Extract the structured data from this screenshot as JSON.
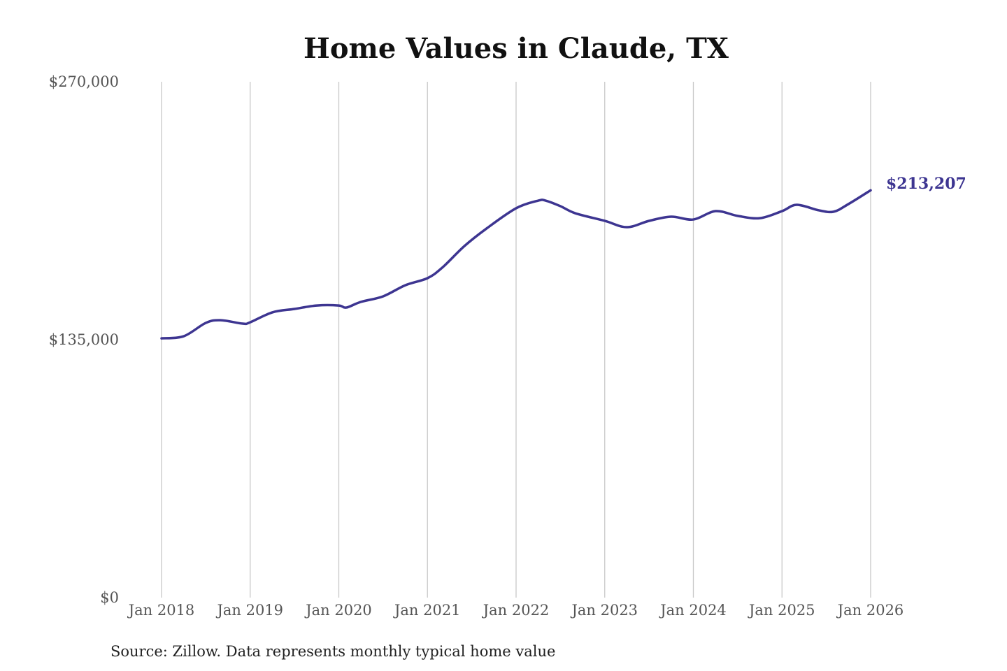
{
  "chart_data": {
    "type": "line",
    "title": "Home Values in Claude, TX",
    "xlabel": "",
    "ylabel": "",
    "ylim": [
      0,
      270000
    ],
    "y_ticks": [
      0,
      135000,
      270000
    ],
    "y_tick_labels": [
      "$0",
      "$135,000",
      "$270,000"
    ],
    "x_ticks": [
      "2018-01",
      "2019-01",
      "2020-01",
      "2021-01",
      "2022-01",
      "2023-01",
      "2024-01",
      "2025-01",
      "2026-01"
    ],
    "x_tick_labels": [
      "Jan 2018",
      "Jan 2019",
      "Jan 2020",
      "Jan 2021",
      "Jan 2022",
      "Jan 2023",
      "Jan 2024",
      "Jan 2025",
      "Jan 2026"
    ],
    "grid": "vertical",
    "line_color": "#3d3591",
    "end_label": "$213,207",
    "points": [
      [
        "2018-01",
        135700
      ],
      [
        "2018-04",
        136800
      ],
      [
        "2018-07",
        143800
      ],
      [
        "2018-09",
        145200
      ],
      [
        "2018-12",
        143400
      ],
      [
        "2019-01",
        144100
      ],
      [
        "2019-04",
        149300
      ],
      [
        "2019-07",
        151100
      ],
      [
        "2019-10",
        152900
      ],
      [
        "2020-01",
        152900
      ],
      [
        "2020-02",
        151800
      ],
      [
        "2020-04",
        154800
      ],
      [
        "2020-07",
        157700
      ],
      [
        "2020-10",
        163500
      ],
      [
        "2021-01",
        167200
      ],
      [
        "2021-03",
        172700
      ],
      [
        "2021-06",
        184000
      ],
      [
        "2021-09",
        193200
      ],
      [
        "2022-01",
        203800
      ],
      [
        "2022-04",
        207800
      ],
      [
        "2022-05",
        207800
      ],
      [
        "2022-07",
        204900
      ],
      [
        "2022-09",
        201200
      ],
      [
        "2023-01",
        197200
      ],
      [
        "2023-04",
        193900
      ],
      [
        "2023-07",
        197200
      ],
      [
        "2023-10",
        199400
      ],
      [
        "2024-01",
        197900
      ],
      [
        "2024-04",
        202300
      ],
      [
        "2024-07",
        199800
      ],
      [
        "2024-10",
        198600
      ],
      [
        "2025-01",
        202300
      ],
      [
        "2025-03",
        205600
      ],
      [
        "2025-06",
        202700
      ],
      [
        "2025-08",
        202000
      ],
      [
        "2025-10",
        206000
      ],
      [
        "2026-01",
        213207
      ]
    ]
  },
  "source": "Source: Zillow. Data represents monthly typical home value"
}
